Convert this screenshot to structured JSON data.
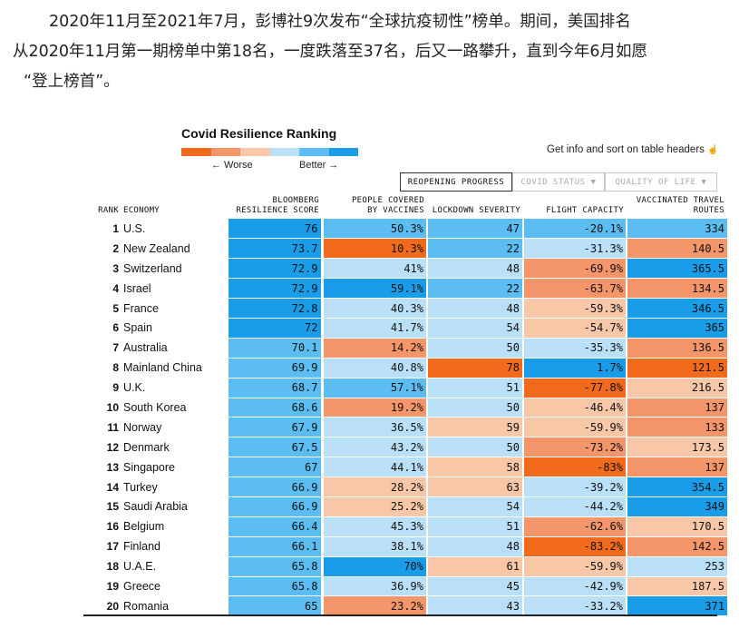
{
  "intro": {
    "line1": "2020年11月至2021年7月，彭博社9次发布“全球抗疫韧性”榜单。期间，美国排名",
    "line2": "从2020年11月第一期榜单中第18名，一度跌落至37名，后又一路攀升，直到今年6月如愿",
    "line3": "“登上榜首”。"
  },
  "chart": {
    "title": "Covid Resilience Ranking",
    "legend_worse": "← Worse",
    "legend_better": "Better →",
    "legend_colors": [
      "#f26a1b",
      "#f5956a",
      "#f8c7a8",
      "#b9e0f7",
      "#5cbdf2",
      "#1a9de9"
    ],
    "info_text": "Get info and sort on table headers",
    "info_icon": "pointer-hand-icon"
  },
  "tabs": [
    {
      "label": "REOPENING PROGRESS",
      "active": true
    },
    {
      "label": "COVID STATUS",
      "active": false,
      "arrow": "▼"
    },
    {
      "label": "QUALITY OF LIFE",
      "active": false,
      "arrow": "▼"
    }
  ],
  "headers": {
    "rank": "RANK",
    "economy": "ECONOMY",
    "score": [
      "BLOOMBERG",
      "RESILIENCE SCORE"
    ],
    "vaccines": [
      "PEOPLE COVERED",
      "BY VACCINES"
    ],
    "lockdown": "LOCKDOWN SEVERITY",
    "flight": "FLIGHT CAPACITY",
    "travel": [
      "VACCINATED TRAVEL",
      "ROUTES"
    ]
  },
  "color_scale": {
    "s5": "#1a9de9",
    "s4": "#5cbdf2",
    "s3": "#b9e0f7",
    "s2": "#f8c7a8",
    "s1": "#f5956a",
    "s0": "#f26a1b"
  },
  "rows": [
    {
      "rank": "1",
      "economy": "U.S.",
      "score": "76",
      "vaccines": "50.3%",
      "lockdown": "47",
      "flight": "-20.1%",
      "travel": "334",
      "colors": [
        "s5",
        "s4",
        "s4",
        "s4",
        "s4"
      ]
    },
    {
      "rank": "2",
      "economy": "New Zealand",
      "score": "73.7",
      "vaccines": "10.3%",
      "lockdown": "22",
      "flight": "-31.3%",
      "travel": "140.5",
      "colors": [
        "s5",
        "s0",
        "s4",
        "s3",
        "s1"
      ]
    },
    {
      "rank": "3",
      "economy": "Switzerland",
      "score": "72.9",
      "vaccines": "41%",
      "lockdown": "48",
      "flight": "-69.9%",
      "travel": "365.5",
      "colors": [
        "s5",
        "s3",
        "s3",
        "s1",
        "s5"
      ]
    },
    {
      "rank": "4",
      "economy": "Israel",
      "score": "72.9",
      "vaccines": "59.1%",
      "lockdown": "22",
      "flight": "-63.7%",
      "travel": "134.5",
      "colors": [
        "s5",
        "s5",
        "s4",
        "s1",
        "s1"
      ]
    },
    {
      "rank": "5",
      "economy": "France",
      "score": "72.8",
      "vaccines": "40.3%",
      "lockdown": "48",
      "flight": "-59.3%",
      "travel": "346.5",
      "colors": [
        "s5",
        "s3",
        "s3",
        "s2",
        "s5"
      ]
    },
    {
      "rank": "6",
      "economy": "Spain",
      "score": "72",
      "vaccines": "41.7%",
      "lockdown": "54",
      "flight": "-54.7%",
      "travel": "365",
      "colors": [
        "s5",
        "s3",
        "s3",
        "s2",
        "s5"
      ]
    },
    {
      "rank": "7",
      "economy": "Australia",
      "score": "70.1",
      "vaccines": "14.2%",
      "lockdown": "50",
      "flight": "-35.3%",
      "travel": "136.5",
      "colors": [
        "s4",
        "s1",
        "s3",
        "s3",
        "s1"
      ]
    },
    {
      "rank": "8",
      "economy": "Mainland China",
      "score": "69.9",
      "vaccines": "40.8%",
      "lockdown": "78",
      "flight": "1.7%",
      "travel": "121.5",
      "colors": [
        "s4",
        "s3",
        "s0",
        "s5",
        "s0"
      ]
    },
    {
      "rank": "9",
      "economy": "U.K.",
      "score": "68.7",
      "vaccines": "57.1%",
      "lockdown": "51",
      "flight": "-77.8%",
      "travel": "216.5",
      "colors": [
        "s4",
        "s4",
        "s3",
        "s0",
        "s2"
      ]
    },
    {
      "rank": "10",
      "economy": "South Korea",
      "score": "68.6",
      "vaccines": "19.2%",
      "lockdown": "50",
      "flight": "-46.4%",
      "travel": "137",
      "colors": [
        "s4",
        "s1",
        "s3",
        "s2",
        "s1"
      ]
    },
    {
      "rank": "11",
      "economy": "Norway",
      "score": "67.9",
      "vaccines": "36.5%",
      "lockdown": "59",
      "flight": "-59.9%",
      "travel": "133",
      "colors": [
        "s4",
        "s3",
        "s2",
        "s2",
        "s1"
      ]
    },
    {
      "rank": "12",
      "economy": "Denmark",
      "score": "67.5",
      "vaccines": "43.2%",
      "lockdown": "50",
      "flight": "-73.2%",
      "travel": "173.5",
      "colors": [
        "s4",
        "s3",
        "s3",
        "s1",
        "s2"
      ]
    },
    {
      "rank": "13",
      "economy": "Singapore",
      "score": "67",
      "vaccines": "44.1%",
      "lockdown": "58",
      "flight": "-83%",
      "travel": "137",
      "colors": [
        "s4",
        "s3",
        "s2",
        "s0",
        "s1"
      ]
    },
    {
      "rank": "14",
      "economy": "Turkey",
      "score": "66.9",
      "vaccines": "28.2%",
      "lockdown": "63",
      "flight": "-39.2%",
      "travel": "354.5",
      "colors": [
        "s4",
        "s2",
        "s2",
        "s3",
        "s5"
      ]
    },
    {
      "rank": "15",
      "economy": "Saudi Arabia",
      "score": "66.9",
      "vaccines": "25.2%",
      "lockdown": "54",
      "flight": "-44.2%",
      "travel": "349",
      "colors": [
        "s4",
        "s2",
        "s3",
        "s3",
        "s5"
      ]
    },
    {
      "rank": "16",
      "economy": "Belgium",
      "score": "66.4",
      "vaccines": "45.3%",
      "lockdown": "51",
      "flight": "-62.6%",
      "travel": "170.5",
      "colors": [
        "s4",
        "s3",
        "s3",
        "s1",
        "s2"
      ]
    },
    {
      "rank": "17",
      "economy": "Finland",
      "score": "66.1",
      "vaccines": "38.1%",
      "lockdown": "48",
      "flight": "-83.2%",
      "travel": "142.5",
      "colors": [
        "s4",
        "s3",
        "s3",
        "s0",
        "s1"
      ]
    },
    {
      "rank": "18",
      "economy": "U.A.E.",
      "score": "65.8",
      "vaccines": "70%",
      "lockdown": "61",
      "flight": "-59.9%",
      "travel": "253",
      "colors": [
        "s4",
        "s5",
        "s2",
        "s2",
        "s3"
      ]
    },
    {
      "rank": "19",
      "economy": "Greece",
      "score": "65.8",
      "vaccines": "36.9%",
      "lockdown": "45",
      "flight": "-42.9%",
      "travel": "187.5",
      "colors": [
        "s4",
        "s3",
        "s3",
        "s3",
        "s2"
      ]
    },
    {
      "rank": "20",
      "economy": "Romania",
      "score": "65",
      "vaccines": "23.2%",
      "lockdown": "43",
      "flight": "-33.2%",
      "travel": "371",
      "colors": [
        "s4",
        "s1",
        "s3",
        "s3",
        "s5"
      ]
    }
  ]
}
